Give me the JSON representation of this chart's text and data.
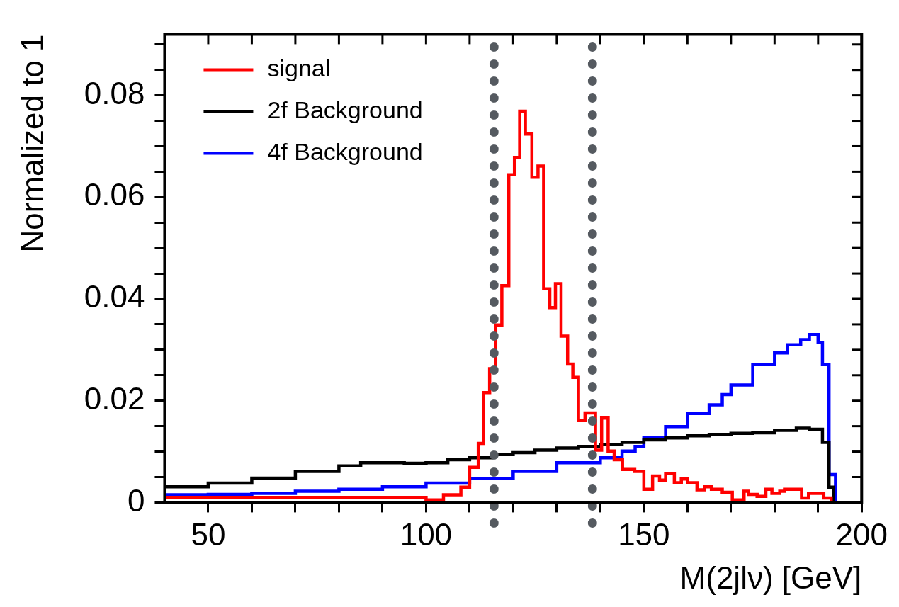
{
  "chart_data": {
    "type": "step",
    "xlabel": "M(2jlν) [GeV]",
    "ylabel": "Normalized to 1",
    "xlim": [
      40,
      200
    ],
    "xticks": [
      50,
      {
        "value": 60,
        "label": null
      },
      {
        "value": 70,
        "label": null
      },
      {
        "value": 80,
        "label": null
      },
      {
        "value": 90,
        "label": null
      },
      100,
      {
        "value": 110,
        "label": null
      },
      {
        "value": 120,
        "label": null
      },
      {
        "value": 130,
        "label": null
      },
      {
        "value": 140,
        "label": null
      },
      150,
      {
        "value": 160,
        "label": null
      },
      {
        "value": 170,
        "label": null
      },
      {
        "value": 180,
        "label": null
      },
      {
        "value": 190,
        "label": null
      },
      200
    ],
    "ylim": [
      0,
      0.092
    ],
    "yticks": [
      0,
      {
        "value": 0.005,
        "label": null
      },
      {
        "value": 0.01,
        "label": null
      },
      {
        "value": 0.015,
        "label": null
      },
      0.02,
      {
        "value": 0.025,
        "label": null
      },
      {
        "value": 0.03,
        "label": null
      },
      {
        "value": 0.035,
        "label": null
      },
      0.04,
      {
        "value": 0.045,
        "label": null
      },
      {
        "value": 0.05,
        "label": null
      },
      {
        "value": 0.055,
        "label": null
      },
      0.06,
      {
        "value": 0.065,
        "label": null
      },
      {
        "value": 0.07,
        "label": null
      },
      {
        "value": 0.075,
        "label": null
      },
      0.08,
      {
        "value": 0.085,
        "label": null
      },
      {
        "value": 0.09,
        "label": null
      }
    ],
    "grid": false,
    "legend": "top left",
    "series": [
      {
        "name": "signal",
        "color": "#ff0000",
        "x": [
          40,
          100,
          104,
          108,
          110,
          112,
          113.2,
          114.6,
          116,
          117.4,
          119,
          120.3,
          121.5,
          122.8,
          124.3,
          125.7,
          127,
          128.4,
          129.7,
          131,
          132.5,
          133.7,
          135,
          136.5,
          138.9,
          140.3,
          141.8,
          143.2,
          145.1,
          147.9,
          150,
          152,
          153.6,
          155,
          157,
          158.6,
          160,
          162.2,
          163.9,
          165.5,
          168,
          170.3,
          173,
          174,
          176,
          178,
          179.4,
          181.2,
          182.3,
          186.2,
          187.8,
          191.3,
          193,
          194
        ],
        "values": [
          0,
          0.001,
          0.0005,
          0.0015,
          0.003,
          0.0069,
          0.0116,
          0.0216,
          0.0263,
          0.0349,
          0.0426,
          0.0644,
          0.0678,
          0.0769,
          0.0724,
          0.0639,
          0.0661,
          0.042,
          0.0383,
          0.043,
          0.0327,
          0.0272,
          0.0246,
          0.0161,
          0.0176,
          0.0103,
          0.0166,
          0.0101,
          0.0084,
          0.0065,
          0.0061,
          0.0026,
          0.0052,
          0.0044,
          0.0057,
          0.0039,
          0.0046,
          0.0039,
          0.0025,
          0.0031,
          0.0026,
          0.002,
          0.0005,
          0.0022,
          0.0016,
          0.0012,
          0.0026,
          0.0018,
          0.0022,
          0.0026,
          0.0009,
          0.0018,
          0.0009,
          0
        ]
      },
      {
        "name": "2f Background",
        "color": "#000000",
        "x": [
          40,
          50,
          60,
          70,
          80,
          85,
          90,
          95,
          100,
          105,
          110,
          115,
          120,
          125,
          130,
          135,
          140,
          145,
          150,
          155,
          160,
          165,
          170,
          175,
          180,
          185,
          188,
          191,
          192.5,
          193.5,
          195
        ],
        "values": [
          0.0025,
          0.0031,
          0.0038,
          0.0048,
          0.0061,
          0.0072,
          0.0078,
          0.0078,
          0.0077,
          0.0078,
          0.0084,
          0.0088,
          0.0094,
          0.0098,
          0.0103,
          0.0107,
          0.011,
          0.0114,
          0.0118,
          0.0123,
          0.0127,
          0.0131,
          0.0133,
          0.0136,
          0.0137,
          0.0142,
          0.0146,
          0.0144,
          0.0118,
          0.003,
          0
        ]
      },
      {
        "name": "4f Background",
        "color": "#0000ff",
        "x": [
          40,
          50,
          60,
          70,
          80,
          90,
          100,
          110,
          120,
          130,
          140,
          145,
          148,
          150,
          155,
          160,
          165,
          168,
          170,
          175,
          180,
          183,
          186,
          188,
          190,
          191,
          192.5,
          194,
          195
        ],
        "values": [
          0.0013,
          0.0015,
          0.0016,
          0.0018,
          0.0022,
          0.0026,
          0.0031,
          0.0038,
          0.0047,
          0.0061,
          0.0078,
          0.0088,
          0.0101,
          0.011,
          0.0127,
          0.0149,
          0.0175,
          0.0192,
          0.0212,
          0.0231,
          0.0271,
          0.0294,
          0.031,
          0.032,
          0.033,
          0.0314,
          0.0271,
          0.0055,
          0
        ]
      }
    ],
    "ref_lines": [
      {
        "axis": "x",
        "value": 115.6,
        "color": "#555a60",
        "line_style": "dotted"
      },
      {
        "axis": "x",
        "value": 138.2,
        "color": "#555a60",
        "line_style": "dotted"
      }
    ]
  }
}
